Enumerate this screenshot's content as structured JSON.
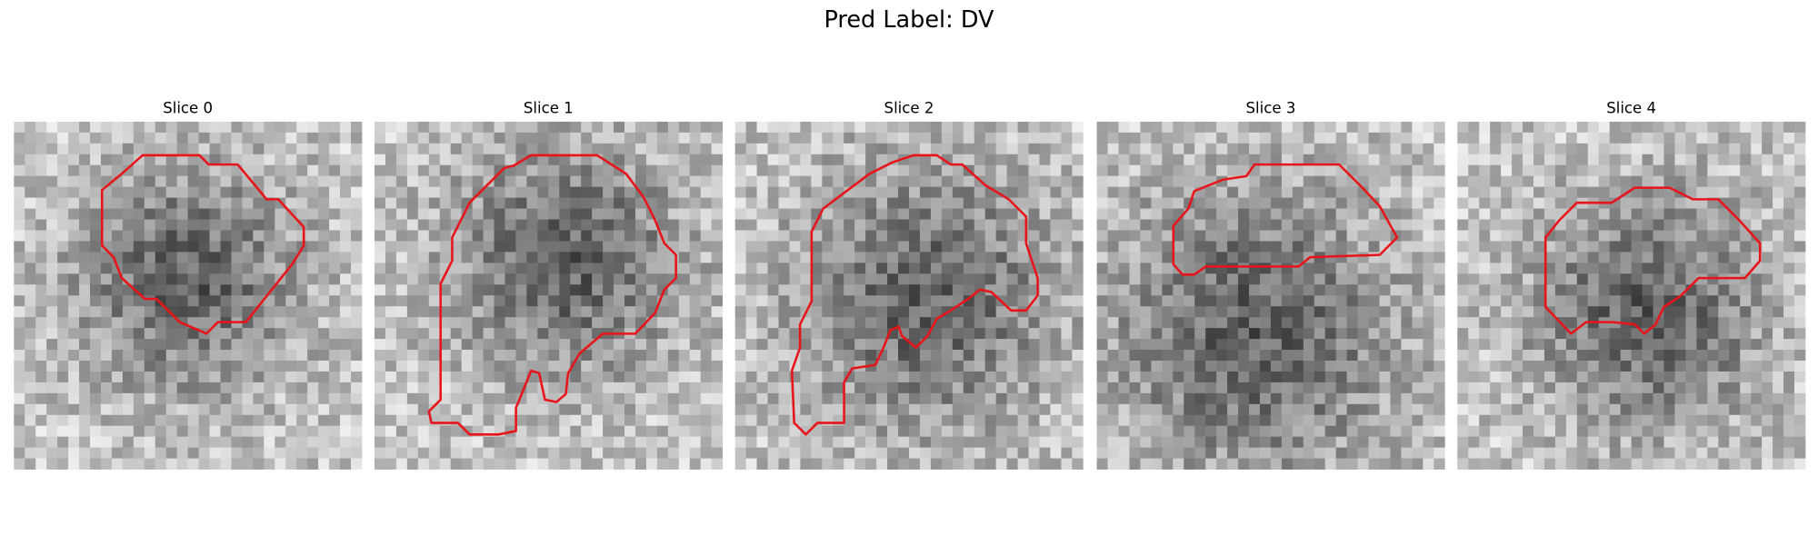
{
  "figure": {
    "title": "Pred Label: DV",
    "panels": [
      "Slice 0",
      "Slice 1",
      "Slice 2",
      "Slice 3",
      "Slice 4"
    ]
  }
}
